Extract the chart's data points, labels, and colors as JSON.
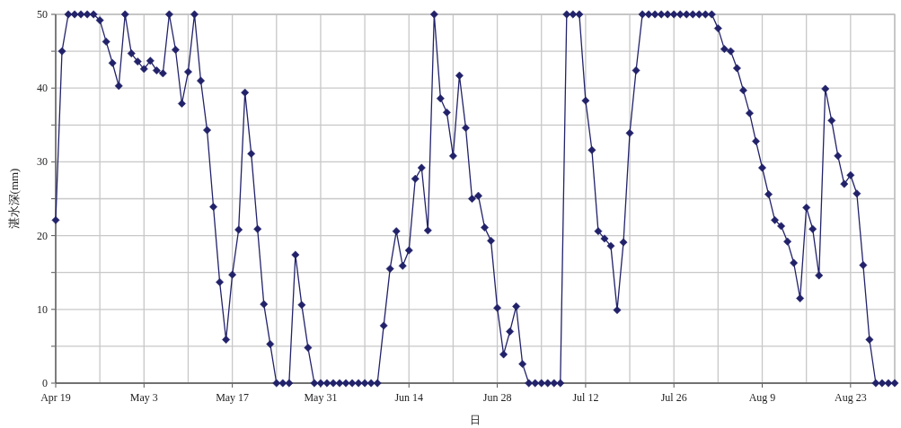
{
  "chart_data": {
    "type": "line",
    "ylabel": "湛水深(mm)",
    "xlabel": "日",
    "x": [
      "--04-19",
      "--04-20",
      "--04-21",
      "--04-22",
      "--04-23",
      "--04-24",
      "--04-25",
      "--04-26",
      "--04-27",
      "--04-28",
      "--04-29",
      "--04-30",
      "--05-01",
      "--05-02",
      "--05-03",
      "--05-04",
      "--05-05",
      "--05-06",
      "--05-07",
      "--05-08",
      "--05-09",
      "--05-10",
      "--05-11",
      "--05-12",
      "--05-13",
      "--05-14",
      "--05-15",
      "--05-16",
      "--05-17",
      "--05-18",
      "--05-19",
      "--05-20",
      "--05-21",
      "--05-22",
      "--05-23",
      "--05-24",
      "--05-25",
      "--05-26",
      "--05-27",
      "--05-28",
      "--05-29",
      "--05-30",
      "--05-31",
      "--06-01",
      "--06-02",
      "--06-03",
      "--06-04",
      "--06-05",
      "--06-06",
      "--06-07",
      "--06-08",
      "--06-09",
      "--06-10",
      "--06-11",
      "--06-12",
      "--06-13",
      "--06-14",
      "--06-15",
      "--06-16",
      "--06-17",
      "--06-18",
      "--06-19",
      "--06-20",
      "--06-21",
      "--06-22",
      "--06-23",
      "--06-24",
      "--06-25",
      "--06-26",
      "--06-27",
      "--06-28",
      "--06-29",
      "--06-30",
      "--07-01",
      "--07-02",
      "--07-03",
      "--07-04",
      "--07-05",
      "--07-06",
      "--07-07",
      "--07-08",
      "--07-09",
      "--07-10",
      "--07-11",
      "--07-12",
      "--07-13",
      "--07-14",
      "--07-15",
      "--07-16",
      "--07-17",
      "--07-18",
      "--07-19",
      "--07-20",
      "--07-21",
      "--07-22",
      "--07-23",
      "--07-24",
      "--07-25",
      "--07-26",
      "--07-27",
      "--07-28",
      "--07-29",
      "--07-30",
      "--07-31",
      "--08-01",
      "--08-02",
      "--08-03",
      "--08-04",
      "--08-05",
      "--08-06",
      "--08-07",
      "--08-08",
      "--08-09",
      "--08-10",
      "--08-11",
      "--08-12",
      "--08-13",
      "--08-14",
      "--08-15",
      "--08-16",
      "--08-17",
      "--08-18",
      "--08-19",
      "--08-20",
      "--08-21",
      "--08-22",
      "--08-23",
      "--08-24",
      "--08-25",
      "--08-26",
      "--08-27",
      "--08-28",
      "--08-29",
      "--08-30"
    ],
    "series": [
      {
        "color": "#22226a",
        "values": [
          22.1,
          45,
          50,
          50,
          50,
          50,
          50,
          49.2,
          46.3,
          43.4,
          40.3,
          50,
          44.7,
          43.6,
          42.6,
          43.7,
          42.4,
          42.0,
          50,
          45.2,
          37.9,
          42.2,
          50,
          41.0,
          34.3,
          23.9,
          13.7,
          5.9,
          14.7,
          20.8,
          39.4,
          31.1,
          20.9,
          10.7,
          5.3,
          0,
          0,
          0,
          17.4,
          10.6,
          4.8,
          0,
          0,
          0,
          0,
          0,
          0,
          0,
          0,
          0,
          0,
          0,
          7.8,
          15.5,
          20.6,
          15.9,
          18.0,
          27.7,
          29.2,
          20.7,
          50,
          38.6,
          36.7,
          30.8,
          41.7,
          34.6,
          25.0,
          25.4,
          21.1,
          19.3,
          10.2,
          3.9,
          7.0,
          10.4,
          2.6,
          0,
          0,
          0,
          0,
          0,
          0,
          50,
          50,
          50,
          38.3,
          31.6,
          20.6,
          19.6,
          18.6,
          9.9,
          19.1,
          33.9,
          42.4,
          50,
          50,
          50,
          50,
          50,
          50,
          50,
          50,
          50,
          50,
          50,
          50,
          48.1,
          45.3,
          45.0,
          42.7,
          39.7,
          36.6,
          32.8,
          29.2,
          25.6,
          22.1,
          21.3,
          19.2,
          16.3,
          11.5,
          23.8,
          20.9,
          14.6,
          39.9,
          35.6,
          30.8,
          27.0,
          28.2,
          25.7,
          16.0,
          5.9,
          0,
          0,
          0,
          0
        ]
      }
    ],
    "xlim": [
      "--04-19",
      "--08-30"
    ],
    "xticks": [
      {
        "value": "--04-19",
        "label": "Apr 19"
      },
      {
        "value": "--04-26",
        "label": null
      },
      {
        "value": "--05-03",
        "label": "May 3"
      },
      {
        "value": "--05-10",
        "label": null
      },
      {
        "value": "--05-17",
        "label": "May 17"
      },
      {
        "value": "--05-24",
        "label": null
      },
      {
        "value": "--05-31",
        "label": "May 31"
      },
      {
        "value": "--06-07",
        "label": null
      },
      {
        "value": "--06-14",
        "label": "Jun 14"
      },
      {
        "value": "--06-21",
        "label": null
      },
      {
        "value": "--06-28",
        "label": "Jun 28"
      },
      {
        "value": "--07-05",
        "label": null
      },
      {
        "value": "--07-12",
        "label": "Jul 12"
      },
      {
        "value": "--07-19",
        "label": null
      },
      {
        "value": "--07-26",
        "label": "Jul 26"
      },
      {
        "value": "--08-02",
        "label": null
      },
      {
        "value": "--08-09",
        "label": "Aug 9"
      },
      {
        "value": "--08-16",
        "label": null
      },
      {
        "value": "--08-23",
        "label": "Aug 23"
      },
      {
        "value": "--08-30",
        "label": null
      }
    ],
    "ylim": [
      0,
      50
    ],
    "yticks": [
      0,
      {
        "value": 5,
        "label": null
      },
      10,
      {
        "value": 15,
        "label": null
      },
      20,
      {
        "value": 25,
        "label": null
      },
      30,
      {
        "value": 35,
        "label": null
      },
      40,
      {
        "value": 45,
        "label": null
      },
      50
    ],
    "grid": true,
    "marker": "diamond",
    "line_style": "solid"
  }
}
